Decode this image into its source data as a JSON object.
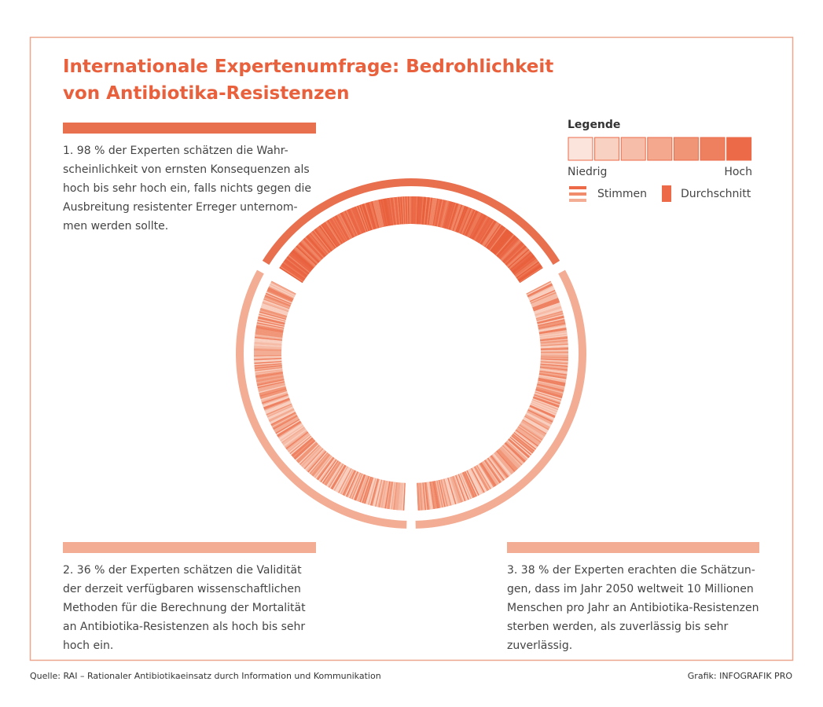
{
  "title_lines": [
    "Internationale Expertenumfrage: Bedrohlichkeit",
    "von Antibiotika-Resistenzen"
  ],
  "legend": {
    "title": "Legende",
    "low": "Niedrig",
    "high": "Hoch",
    "votes": "Stimmen",
    "average": "Durchschnitt"
  },
  "findings": [
    {
      "lines": [
        "1. 98 % der Experten schätzen die Wahr-",
        "scheinlichkeit von ernsten Konsequenzen als",
        "hoch bis sehr hoch ein, falls nichts gegen die",
        "Ausbreitung resistenter Erreger unternom-",
        "men werden sollte."
      ]
    },
    {
      "lines": [
        "2. 36 % der Experten schätzen die Validität",
        "der derzeit verfügbaren wissenschaftlichen",
        "Methoden für die Berechnung der Mortalität",
        "an Antibiotika-Resistenzen als hoch bis sehr",
        "hoch ein."
      ]
    },
    {
      "lines": [
        "3. 38 % der Experten erachten die Schätzun-",
        "gen, dass im Jahr 2050 weltweit 10 Millionen",
        "Menschen pro Jahr an Antibiotika-Resistenzen",
        "sterben werden, als zuverlässig bis sehr",
        "zuverlässig."
      ]
    }
  ],
  "footer": {
    "source": "Quelle: RAI – Rationaler Antibiotikaeinsatz durch Information und Kommunikation",
    "credit": "Grafik: INFOGRAFIK PRO"
  }
}
